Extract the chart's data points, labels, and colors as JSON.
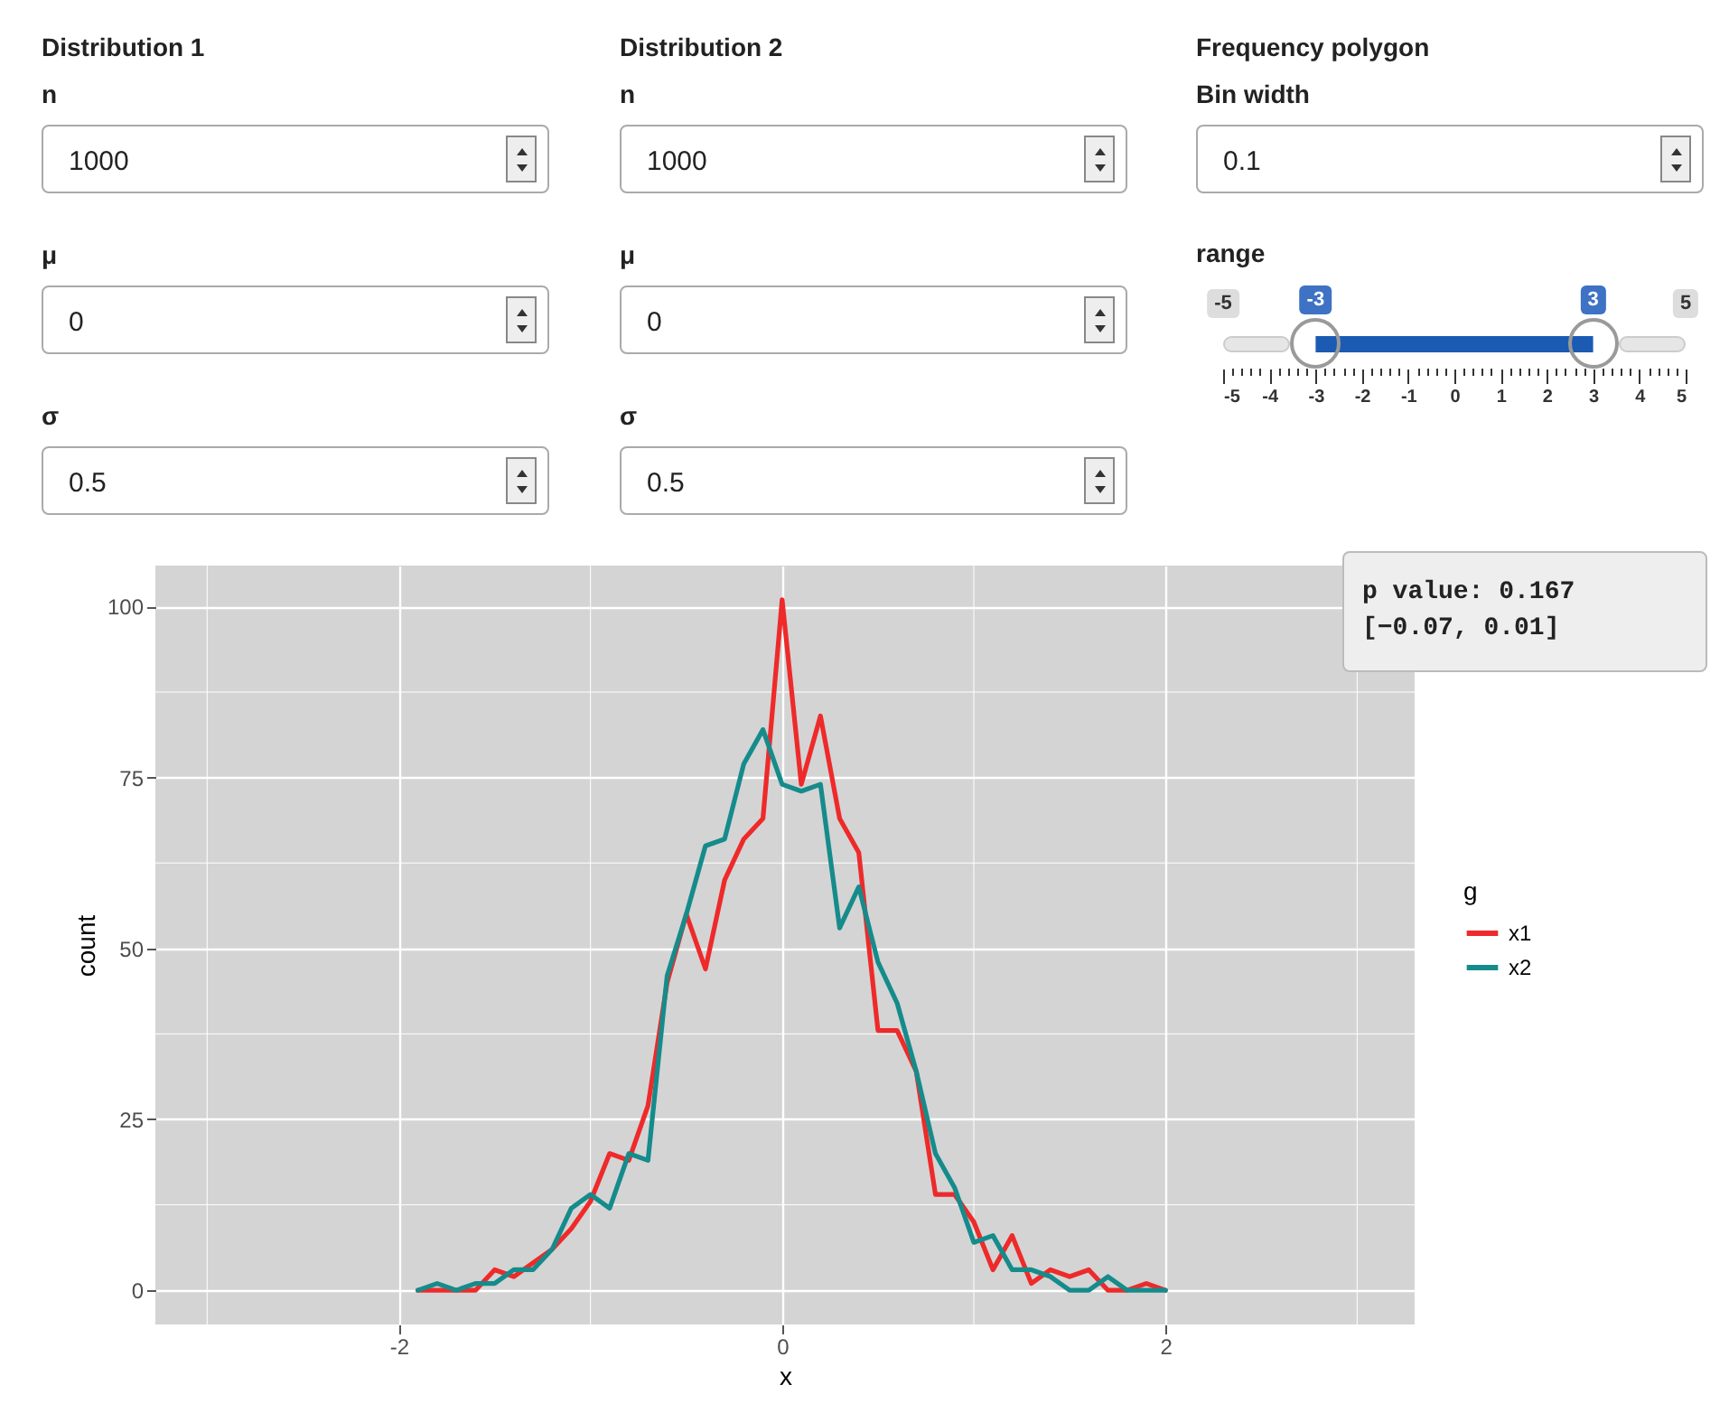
{
  "chart_data": [
    {
      "type": "other",
      "annotations": [
        "Distribution 1",
        "n",
        "1000",
        "μ",
        "0",
        "σ",
        "0.5",
        "Distribution 2",
        "n",
        "1000",
        "μ",
        "0",
        "σ",
        "0.5",
        "Frequency polygon",
        "Bin width",
        "0.1"
      ]
    },
    {
      "type": "bar",
      "orientation": "horizontal",
      "title": "range",
      "categories": [
        null
      ],
      "base": [
        -3
      ],
      "values": [
        6
      ],
      "color": "#1b5bb3",
      "xlim": [
        -5,
        5
      ],
      "xticks": [
        -5,
        -4,
        -3,
        -2,
        -1,
        0,
        1,
        2,
        3,
        4,
        5
      ],
      "annotations": [
        "-5",
        "-3",
        "3",
        "5"
      ]
    },
    {
      "type": "line",
      "xlabel": "x",
      "ylabel": "count",
      "legend_title": "g",
      "legend": "right",
      "grid": true,
      "x": [
        -1.9,
        -1.8,
        -1.7,
        -1.6,
        -1.5,
        -1.4,
        -1.3,
        -1.2,
        -1.1,
        -1.0,
        -0.9,
        -0.8,
        -0.7,
        -0.6,
        -0.5,
        -0.4,
        -0.3,
        -0.2,
        -0.1,
        0,
        0.1,
        0.2,
        0.3,
        0.4,
        0.5,
        0.6,
        0.7,
        0.8,
        0.9,
        1.0,
        1.1,
        1.2,
        1.3,
        1.4,
        1.5,
        1.6,
        1.7,
        1.8,
        1.9,
        2.0
      ],
      "series": [
        {
          "name": "x1",
          "color": "#ee2a2a",
          "values": [
            0,
            0,
            0,
            0,
            3,
            2,
            4,
            6,
            9,
            13,
            20,
            19,
            27,
            45,
            55,
            47,
            60,
            66,
            69,
            101,
            74,
            84,
            69,
            64,
            38,
            38,
            32,
            14,
            14,
            10,
            3,
            8,
            1,
            3,
            2,
            3,
            0,
            0,
            1,
            0
          ]
        },
        {
          "name": "x2",
          "color": "#168b8b",
          "values": [
            0,
            1,
            0,
            1,
            1,
            3,
            3,
            6,
            12,
            14,
            12,
            20,
            19,
            46,
            55,
            65,
            66,
            77,
            82,
            74,
            73,
            74,
            53,
            59,
            48,
            42,
            32,
            20,
            15,
            7,
            8,
            3,
            3,
            2,
            0,
            0,
            2,
            0,
            0,
            0
          ]
        }
      ],
      "xlim": [
        -3.27,
        3.3
      ],
      "xticks": [
        -2,
        0,
        2
      ],
      "ylim": [
        -5,
        106
      ],
      "yticks": [
        0,
        25,
        50,
        75,
        100
      ],
      "annotations": [
        "p value: 0.167",
        "[−0.07, 0.01]"
      ]
    }
  ]
}
